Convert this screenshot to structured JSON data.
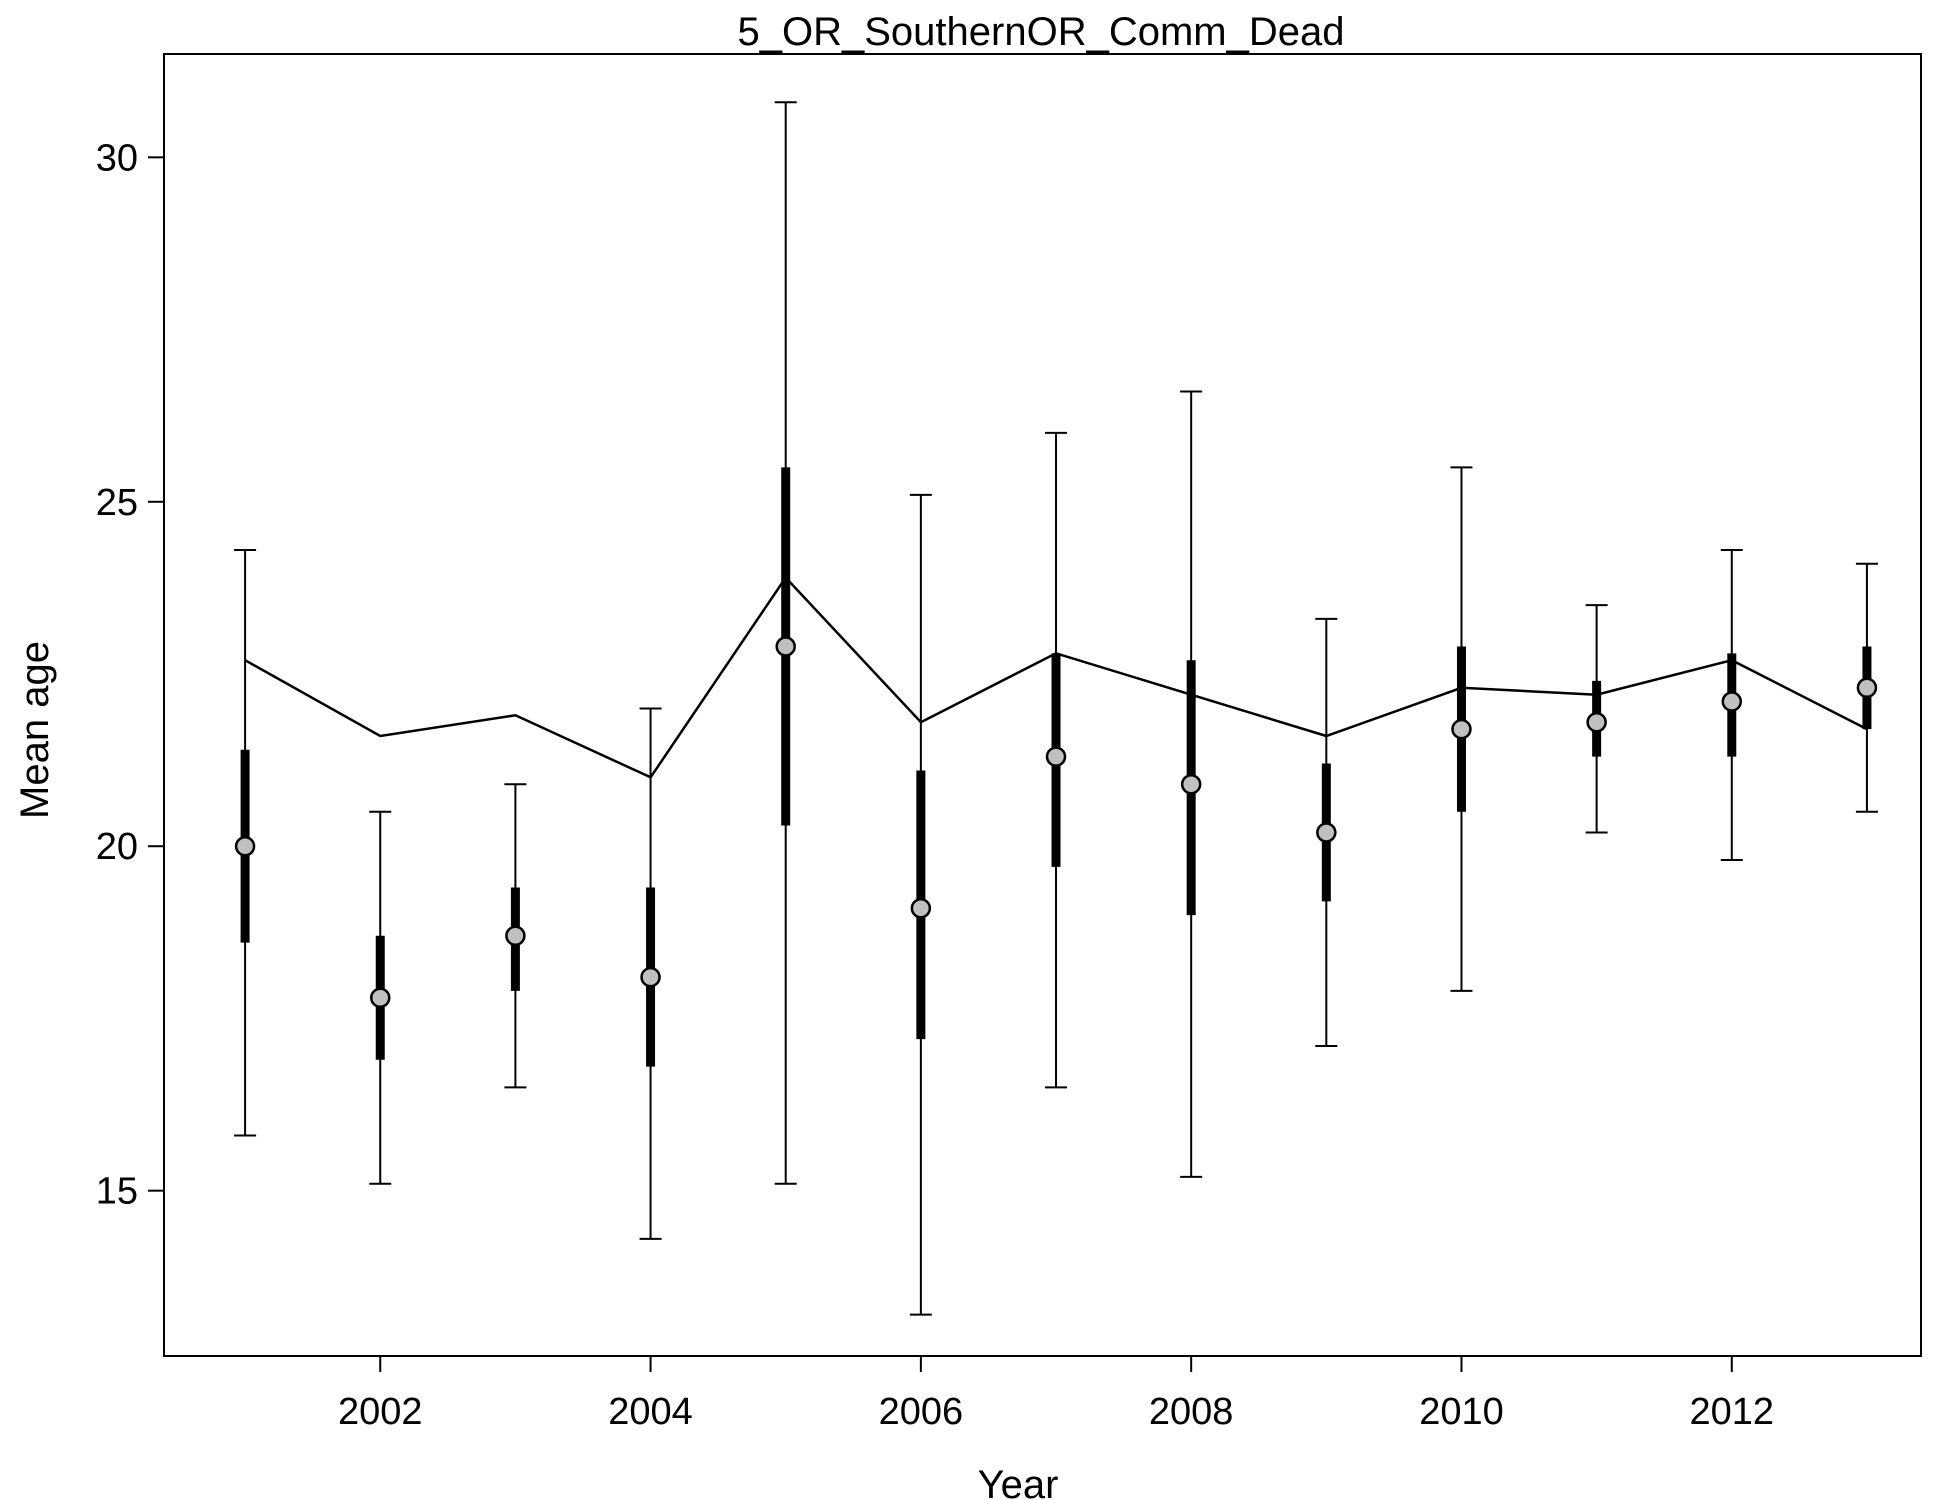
{
  "chart_data": {
    "type": "scatter",
    "title": "5_OR_SouthernOR_Comm_Dead",
    "xlabel": "Year",
    "ylabel": "Mean age",
    "xlim": [
      2000.4,
      2013.4
    ],
    "ylim": [
      12.6,
      31.5
    ],
    "x_ticks": [
      2002,
      2004,
      2006,
      2008,
      2010,
      2012
    ],
    "y_ticks": [
      15,
      20,
      25,
      30
    ],
    "grid": false,
    "series": [
      {
        "type": "points-with-error-bars",
        "x": [
          2001,
          2002,
          2003,
          2004,
          2005,
          2006,
          2007,
          2008,
          2009,
          2010,
          2011,
          2012,
          2013
        ],
        "y": [
          20.0,
          17.8,
          18.7,
          18.1,
          22.9,
          19.1,
          21.3,
          20.9,
          20.2,
          21.7,
          21.8,
          22.1,
          22.3
        ],
        "inner_low": [
          18.6,
          16.9,
          17.9,
          16.8,
          20.3,
          17.2,
          19.7,
          19.0,
          19.2,
          20.5,
          21.3,
          21.3,
          21.7
        ],
        "inner_high": [
          21.4,
          18.7,
          19.4,
          19.4,
          25.5,
          21.1,
          22.8,
          22.7,
          21.2,
          22.9,
          22.4,
          22.8,
          22.9
        ],
        "outer_low": [
          15.8,
          15.1,
          16.5,
          14.3,
          15.1,
          13.2,
          16.5,
          15.2,
          17.1,
          17.9,
          20.2,
          19.8,
          20.5
        ],
        "outer_high": [
          24.3,
          20.5,
          20.9,
          22.0,
          30.8,
          25.1,
          26.0,
          26.6,
          23.3,
          25.5,
          23.5,
          24.3,
          24.1
        ]
      },
      {
        "type": "line",
        "x": [
          2001,
          2002,
          2003,
          2004,
          2005,
          2006,
          2007,
          2008,
          2009,
          2010,
          2011,
          2012,
          2013
        ],
        "y": [
          22.7,
          21.6,
          21.9,
          21.0,
          23.9,
          21.8,
          22.8,
          22.2,
          21.6,
          22.3,
          22.2,
          22.7,
          21.7
        ]
      }
    ],
    "colors": {
      "line": "#000000",
      "point_fill": "#c0c0c0",
      "point_stroke": "#000000"
    }
  }
}
